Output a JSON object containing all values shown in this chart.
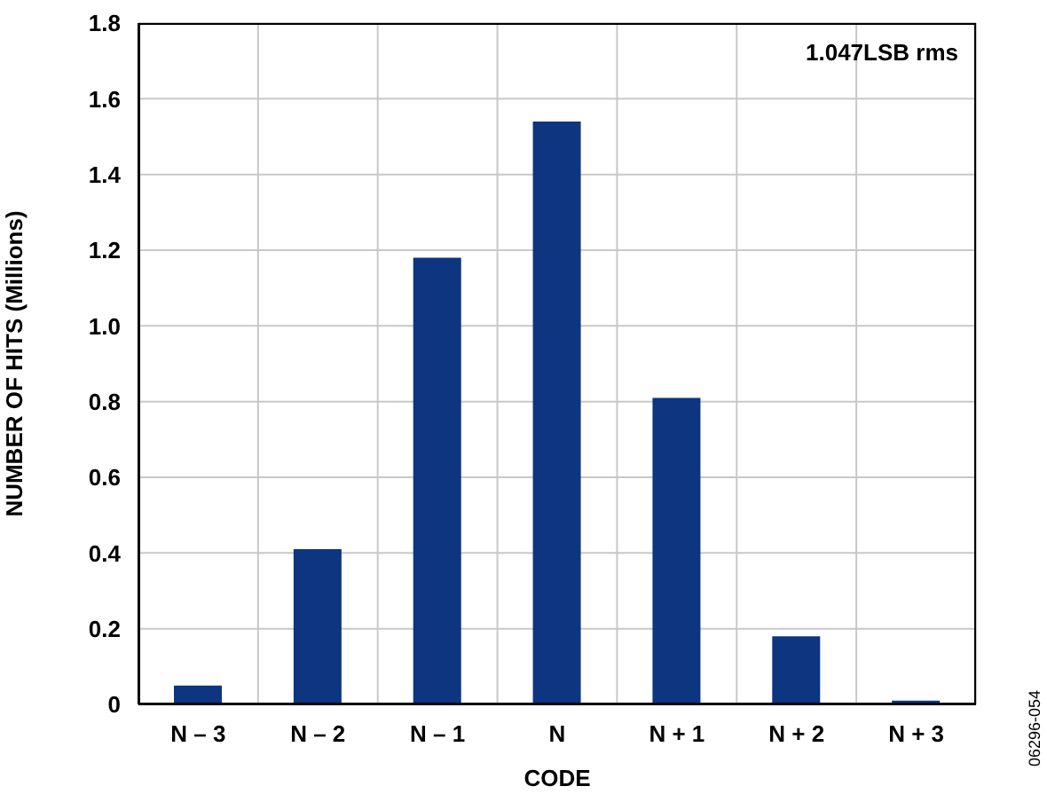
{
  "chart_data": {
    "type": "bar",
    "xlabel": "CODE",
    "ylabel": "NUMBER OF HITS (Millions)",
    "categories": [
      "N – 3",
      "N – 2",
      "N – 1",
      "N",
      "N + 1",
      "N + 2",
      "N + 3"
    ],
    "values": [
      0.05,
      0.41,
      1.18,
      1.54,
      0.81,
      0.18,
      0.01
    ],
    "color": "#0d3580",
    "ylim": [
      0,
      1.8
    ],
    "yticks": [
      0,
      0.2,
      0.4,
      0.6,
      0.8,
      {
        "value": 1,
        "label": "1.0"
      },
      1.2,
      1.4,
      1.6,
      1.8
    ],
    "grid": true,
    "annotations": [
      "1.047LSB rms",
      "06296-054"
    ]
  }
}
